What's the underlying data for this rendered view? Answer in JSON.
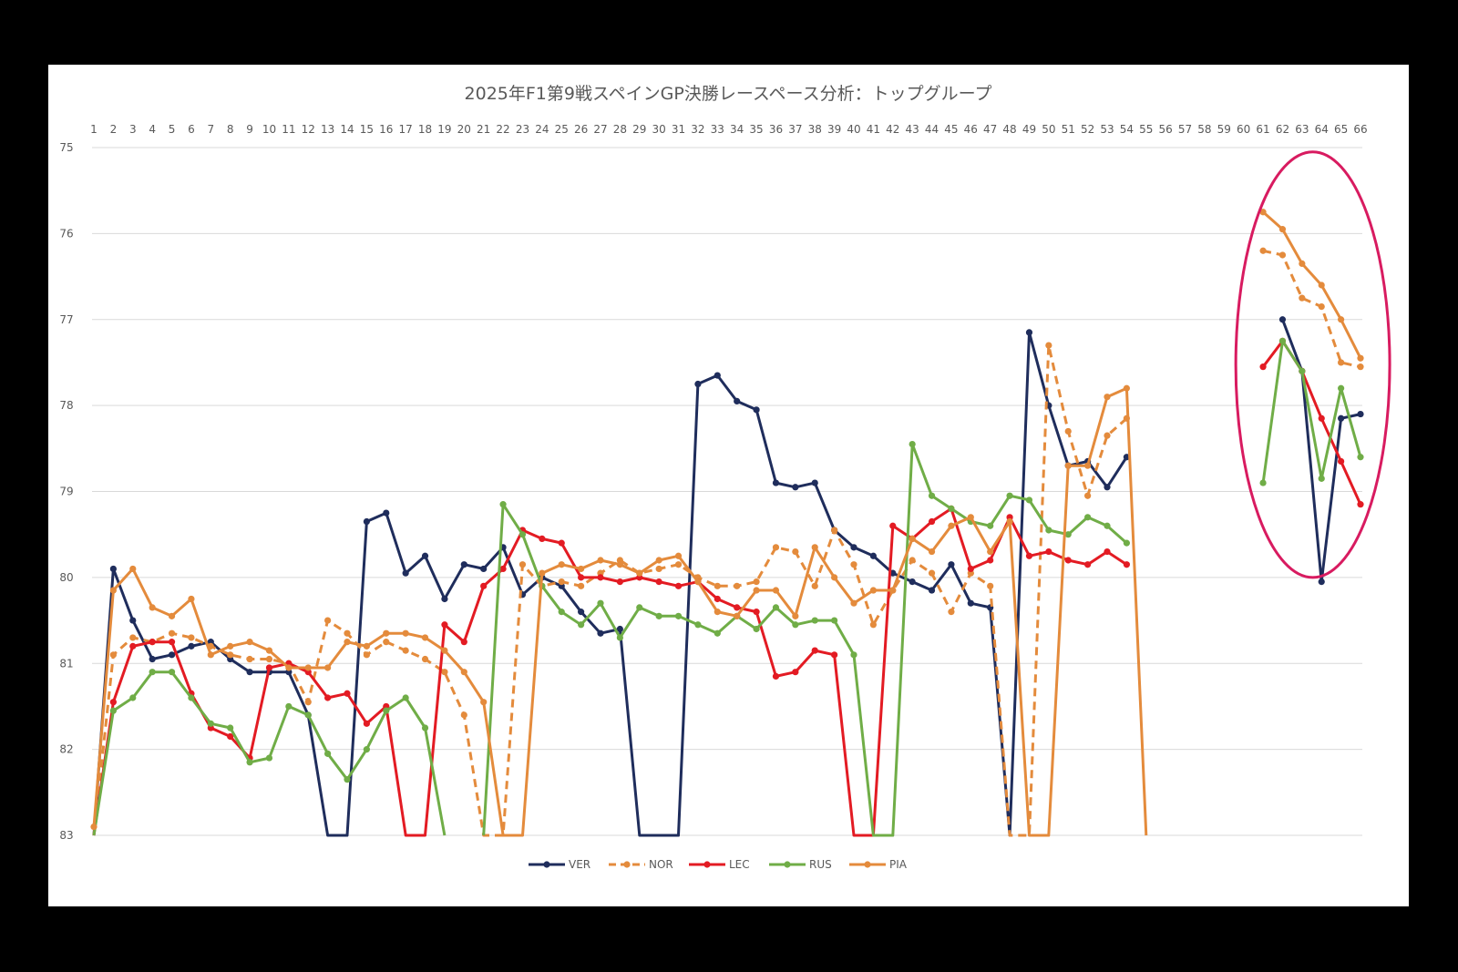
{
  "chart_data": {
    "type": "line",
    "title": "2025年F1第9戦スペインGP決勝レースペース分析：トップグループ",
    "xlabel": "",
    "ylabel": "",
    "x": [
      1,
      2,
      3,
      4,
      5,
      6,
      7,
      8,
      9,
      10,
      11,
      12,
      13,
      14,
      15,
      16,
      17,
      18,
      19,
      20,
      21,
      22,
      23,
      24,
      25,
      26,
      27,
      28,
      29,
      30,
      31,
      32,
      33,
      34,
      35,
      36,
      37,
      38,
      39,
      40,
      41,
      42,
      43,
      44,
      45,
      46,
      47,
      48,
      49,
      50,
      51,
      52,
      53,
      54,
      55,
      56,
      57,
      58,
      59,
      60,
      61,
      62,
      63,
      64,
      65,
      66
    ],
    "x_axis_position": "top",
    "y_axis_reversed": true,
    "ylim": [
      75,
      83
    ],
    "yticks": [
      75,
      76,
      77,
      78,
      79,
      80,
      81,
      82,
      83
    ],
    "grid": true,
    "legend_position": "bottom",
    "series": [
      {
        "name": "VER",
        "color": "#1f2d5c",
        "dash": false,
        "values": [
          83.0,
          79.9,
          80.5,
          80.95,
          80.9,
          80.8,
          80.75,
          80.95,
          81.1,
          81.1,
          81.1,
          81.6,
          83.0,
          83.0,
          79.35,
          79.25,
          79.95,
          79.75,
          80.25,
          79.85,
          79.9,
          79.65,
          80.2,
          80.0,
          80.1,
          80.4,
          80.65,
          80.6,
          83.0,
          83.0,
          83.0,
          77.75,
          77.65,
          77.95,
          78.05,
          78.9,
          78.95,
          78.9,
          79.45,
          79.65,
          79.75,
          79.95,
          80.05,
          80.15,
          79.85,
          80.3,
          80.35,
          83.0,
          77.15,
          78.0,
          78.7,
          78.65,
          78.95,
          78.6,
          null,
          null,
          null,
          null,
          null,
          null,
          null,
          77.0,
          77.6,
          80.05,
          78.15,
          78.1
        ]
      },
      {
        "name": "NOR",
        "color": "#e48b3c",
        "dash": true,
        "values": [
          83.0,
          80.9,
          80.7,
          80.75,
          80.65,
          80.7,
          80.8,
          80.9,
          80.95,
          80.95,
          81.0,
          81.45,
          80.5,
          80.65,
          80.9,
          80.75,
          80.85,
          80.95,
          81.1,
          81.6,
          83.0,
          83.0,
          79.85,
          80.1,
          80.05,
          80.1,
          79.95,
          79.8,
          79.95,
          79.9,
          79.85,
          80.0,
          80.1,
          80.1,
          80.05,
          79.65,
          79.7,
          80.1,
          79.45,
          79.85,
          80.55,
          80.15,
          79.8,
          79.95,
          80.4,
          79.95,
          80.1,
          83.0,
          83.0,
          77.3,
          78.3,
          79.05,
          78.35,
          78.15,
          null,
          null,
          null,
          null,
          null,
          null,
          76.2,
          76.25,
          76.75,
          76.85,
          77.5,
          77.55
        ]
      },
      {
        "name": "LEC",
        "color": "#e31b23",
        "dash": false,
        "values": [
          83.0,
          81.45,
          80.8,
          80.75,
          80.75,
          81.35,
          81.75,
          81.85,
          82.1,
          81.05,
          81.0,
          81.1,
          81.4,
          81.35,
          81.7,
          81.5,
          83.0,
          83.0,
          80.55,
          80.75,
          80.1,
          79.9,
          79.45,
          79.55,
          79.6,
          80.0,
          80.0,
          80.05,
          80.0,
          80.05,
          80.1,
          80.05,
          80.25,
          80.35,
          80.4,
          81.15,
          81.1,
          80.85,
          80.9,
          83.0,
          83.0,
          79.4,
          79.55,
          79.35,
          79.2,
          79.9,
          79.8,
          79.3,
          79.75,
          79.7,
          79.8,
          79.85,
          79.7,
          79.85,
          null,
          null,
          null,
          null,
          null,
          null,
          77.55,
          77.25,
          77.6,
          78.15,
          78.65,
          79.15
        ]
      },
      {
        "name": "RUS",
        "color": "#70ad47",
        "dash": false,
        "values": [
          83.0,
          81.55,
          81.4,
          81.1,
          81.1,
          81.4,
          81.7,
          81.75,
          82.15,
          82.1,
          81.5,
          81.6,
          82.05,
          82.35,
          82.0,
          81.55,
          81.4,
          81.75,
          83.0,
          null,
          83.0,
          79.15,
          79.5,
          80.1,
          80.4,
          80.55,
          80.3,
          80.7,
          80.35,
          80.45,
          80.45,
          80.55,
          80.65,
          80.45,
          80.6,
          80.35,
          80.55,
          80.5,
          80.5,
          80.9,
          83.0,
          83.0,
          78.45,
          79.05,
          79.2,
          79.35,
          79.4,
          79.05,
          79.1,
          79.45,
          79.5,
          79.3,
          79.4,
          79.6,
          null,
          null,
          null,
          null,
          null,
          null,
          78.9,
          77.25,
          77.6,
          78.85,
          77.8,
          78.6
        ]
      },
      {
        "name": "PIA",
        "color": "#e48b3c",
        "dash": false,
        "values": [
          82.9,
          80.15,
          79.9,
          80.35,
          80.45,
          80.25,
          80.9,
          80.8,
          80.75,
          80.85,
          81.05,
          81.05,
          81.05,
          80.75,
          80.8,
          80.65,
          80.65,
          80.7,
          80.85,
          81.1,
          81.45,
          83.0,
          83.0,
          79.95,
          79.85,
          79.9,
          79.8,
          79.85,
          79.95,
          79.8,
          79.75,
          80.05,
          80.4,
          80.45,
          80.15,
          80.15,
          80.45,
          79.65,
          80.0,
          80.3,
          80.15,
          80.15,
          79.55,
          79.7,
          79.4,
          79.3,
          79.7,
          79.35,
          83.0,
          83.0,
          78.7,
          78.7,
          77.9,
          77.8,
          83.0,
          null,
          null,
          null,
          null,
          null,
          75.75,
          75.95,
          76.35,
          76.6,
          77.0,
          77.45
        ]
      }
    ],
    "annotations": [
      {
        "type": "ellipse",
        "color": "#d81b60",
        "x_range": [
          59.6,
          67.5
        ],
        "y_range": [
          75.05,
          80.0
        ]
      }
    ]
  }
}
